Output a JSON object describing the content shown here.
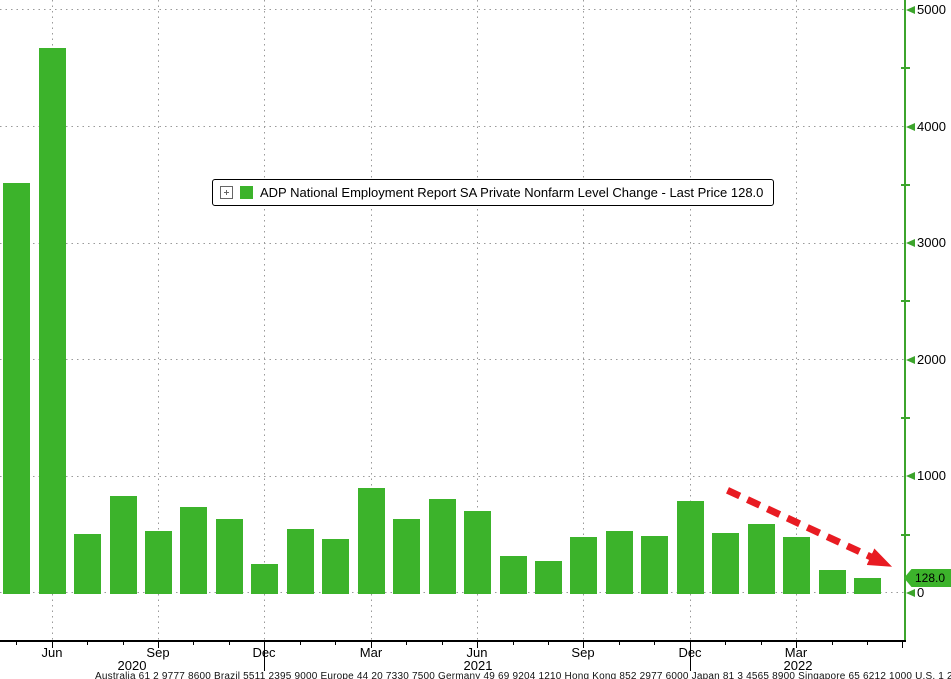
{
  "legend": {
    "label": "ADP National Employment Report SA Private Nonfarm Level Change - Last Price 128.0"
  },
  "last_price_tag": {
    "value": "128.0"
  },
  "footer": {
    "text": "Australia 61 2 9777 8600 Brazil 5511 2395 9000 Europe 44 20 7330 7500 Germany 49 69 9204 1210 Hong Kong 852 2977 6000 Japan 81 3 4565 8900 Singapore 65 6212 1000 U.S. 1 212 318 2000 Copyright 2022 Bloomberg Finance L.P."
  },
  "colors": {
    "bar_green": "#3CB32B",
    "axis_green": "#3CA42C",
    "tag_green": "#3CB32B",
    "arrow_red": "#E81B22",
    "grid_gray": "#9A9A9A",
    "text_black": "#000000"
  },
  "chart_data": {
    "type": "bar",
    "title": "ADP National Employment Report SA Private Nonfarm Level Change - Last Price 128.0",
    "xlabel": "",
    "ylabel": "",
    "grid": "dotted",
    "legend_position": "top-center",
    "categories": [
      "May 2020",
      "Jun 2020",
      "Jul 2020",
      "Aug 2020",
      "Sep 2020",
      "Oct 2020",
      "Nov 2020",
      "Dec 2020",
      "Jan 2021",
      "Feb 2021",
      "Mar 2021",
      "Apr 2021",
      "May 2021",
      "Jun 2021",
      "Jul 2021",
      "Aug 2021",
      "Sep 2021",
      "Oct 2021",
      "Nov 2021",
      "Dec 2021",
      "Jan 2022",
      "Feb 2022",
      "Mar 2022",
      "Apr 2022",
      "May 2022"
    ],
    "values": [
      3515,
      4675,
      505,
      830,
      530,
      740,
      635,
      250,
      550,
      465,
      900,
      635,
      810,
      700,
      320,
      275,
      480,
      530,
      490,
      790,
      515,
      590,
      480,
      200,
      128
    ],
    "last_price": 128.0,
    "ylim": [
      -412,
      5085
    ],
    "yticks": [
      0,
      1000,
      2000,
      3000,
      4000,
      5000
    ],
    "y_minor_ticks": [
      500,
      1500,
      2500,
      3500,
      4500
    ],
    "x_quarter_tick_months": [
      "Mar",
      "Jun",
      "Sep",
      "Dec"
    ],
    "x_quarter_labels": [
      "Jun",
      "Sep",
      "Dec",
      "Mar",
      "Jun",
      "Sep",
      "Dec",
      "Mar"
    ],
    "year_labels": [
      "2020",
      "2021",
      "2022"
    ],
    "annotation_arrow": {
      "type": "arrow",
      "style": "dashed",
      "from": {
        "index": 20.05,
        "value": 880
      },
      "to": {
        "index": 24.55,
        "value": 245
      }
    }
  }
}
